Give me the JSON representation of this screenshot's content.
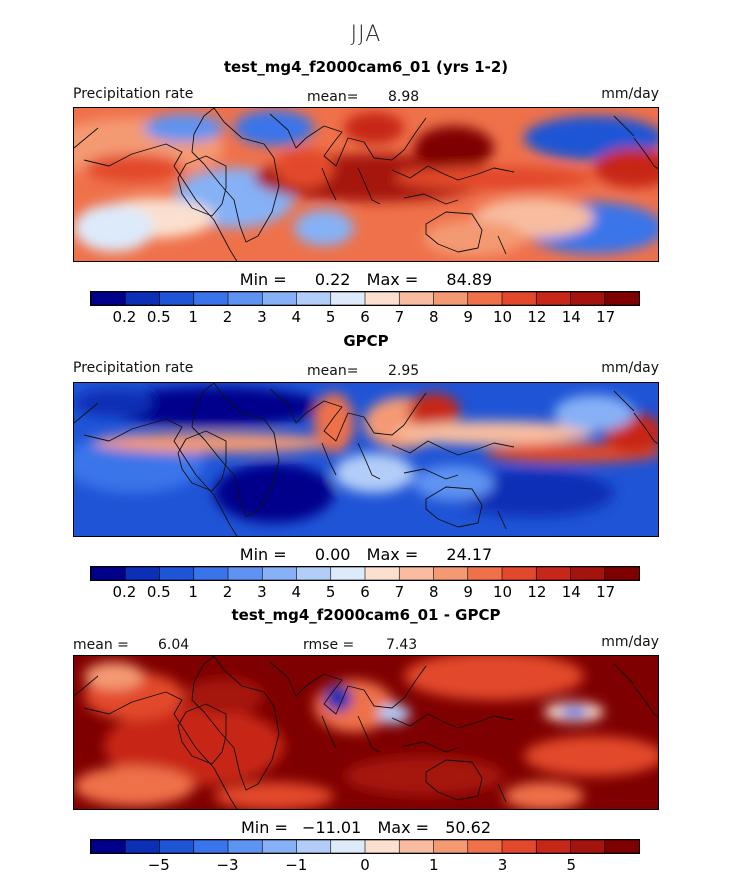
{
  "chart_data": [
    {
      "type": "heatmap",
      "season": "JJA",
      "title": "test_mg4_f2000cam6_01 (yrs 1-2)",
      "variable_label": "Precipitation rate",
      "mean_label": "mean=",
      "mean_value": "8.98",
      "units": "mm/day",
      "min_label": "Min =",
      "min_value": "0.22",
      "max_label": "Max =",
      "max_value": "84.89",
      "colorbar_ticks": [
        "0.2",
        "0.5",
        "1",
        "2",
        "3",
        "4",
        "5",
        "6",
        "7",
        "8",
        "9",
        "10",
        "12",
        "14",
        "17"
      ],
      "palette": [
        "#00008b",
        "#0b2fb6",
        "#1f54d6",
        "#3a74ea",
        "#5e93f2",
        "#86b1f6",
        "#b2cdf8",
        "#ddeafa",
        "#fbe0cf",
        "#f8bda0",
        "#f49a73",
        "#ef714a",
        "#e2482b",
        "#c72719",
        "#a5130f",
        "#7f0000"
      ]
    },
    {
      "type": "heatmap",
      "title": "GPCP",
      "variable_label": "Precipitation rate",
      "mean_label": "mean=",
      "mean_value": "2.95",
      "units": "mm/day",
      "min_label": "Min =",
      "min_value": "0.00",
      "max_label": "Max =",
      "max_value": "24.17",
      "colorbar_ticks": [
        "0.2",
        "0.5",
        "1",
        "2",
        "3",
        "4",
        "5",
        "6",
        "7",
        "8",
        "9",
        "10",
        "12",
        "14",
        "17"
      ],
      "palette": [
        "#00008b",
        "#0b2fb6",
        "#1f54d6",
        "#3a74ea",
        "#5e93f2",
        "#86b1f6",
        "#b2cdf8",
        "#ddeafa",
        "#fbe0cf",
        "#f8bda0",
        "#f49a73",
        "#ef714a",
        "#e2482b",
        "#c72719",
        "#a5130f",
        "#7f0000"
      ]
    },
    {
      "type": "heatmap",
      "title": "test_mg4_f2000cam6_01 - GPCP",
      "mean_label": "mean =",
      "mean_value": "6.04",
      "rmse_label": "rmse =",
      "rmse_value": "7.43",
      "units": "mm/day",
      "min_label": "Min =",
      "min_value": "−11.01",
      "max_label": "Max =",
      "max_value": "50.62",
      "colorbar_ticks": [
        "−5",
        "−3",
        "−1",
        "0",
        "1",
        "3",
        "5"
      ],
      "palette": [
        "#00008b",
        "#0b2fb6",
        "#1f54d6",
        "#3a74ea",
        "#5e93f2",
        "#86b1f6",
        "#b2cdf8",
        "#ddeafa",
        "#fbe0cf",
        "#f8bda0",
        "#f49a73",
        "#ef714a",
        "#e2482b",
        "#c72719",
        "#a5130f",
        "#7f0000"
      ]
    }
  ]
}
